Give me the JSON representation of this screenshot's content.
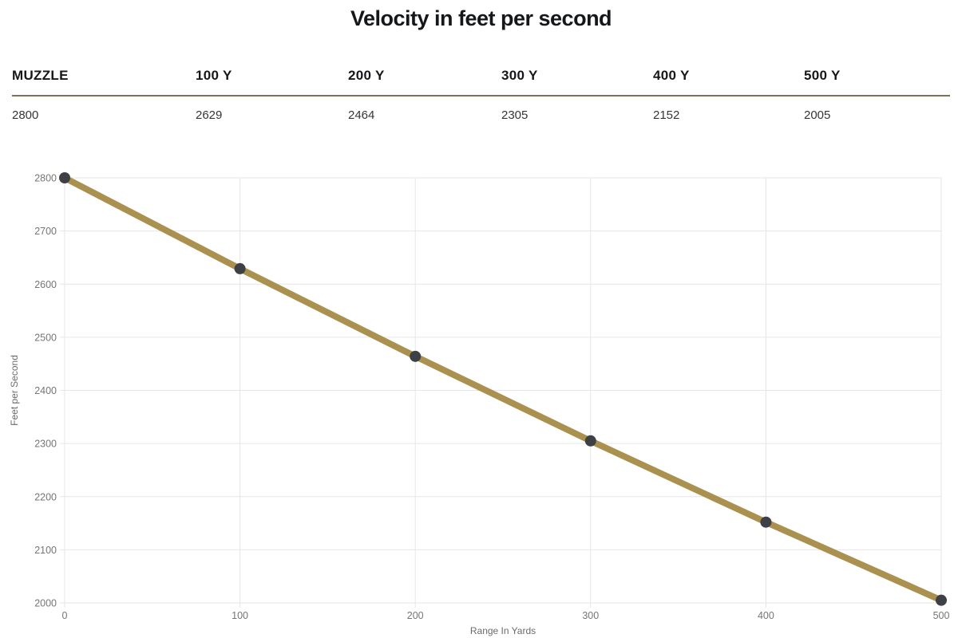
{
  "title": "Velocity in feet per second",
  "table": {
    "headers": [
      "MUZZLE",
      "100 Y",
      "200 Y",
      "300 Y",
      "400 Y",
      "500 Y"
    ],
    "values": [
      "2800",
      "2629",
      "2464",
      "2305",
      "2152",
      "2005"
    ]
  },
  "chart_data": {
    "type": "line",
    "x": [
      0,
      100,
      200,
      300,
      400,
      500
    ],
    "series": [
      {
        "name": "Velocity",
        "values": [
          2800,
          2629,
          2464,
          2305,
          2152,
          2005
        ]
      }
    ],
    "xlabel": "Range In Yards",
    "ylabel": "Feet per Second",
    "xlim": [
      0,
      500
    ],
    "ylim": [
      2000,
      2800
    ],
    "x_ticks": [
      0,
      100,
      200,
      300,
      400,
      500
    ],
    "y_ticks": [
      2000,
      2100,
      2200,
      2300,
      2400,
      2500,
      2600,
      2700,
      2800
    ],
    "grid": true,
    "legend": "none"
  },
  "colors": {
    "line": "#ab9150",
    "point": "#3d4045",
    "grid": "#e6e6e6",
    "tick_label": "#757575",
    "axis_title": "#6b6b6b",
    "table_rule": "#7d7257",
    "title_text": "#15171a"
  }
}
